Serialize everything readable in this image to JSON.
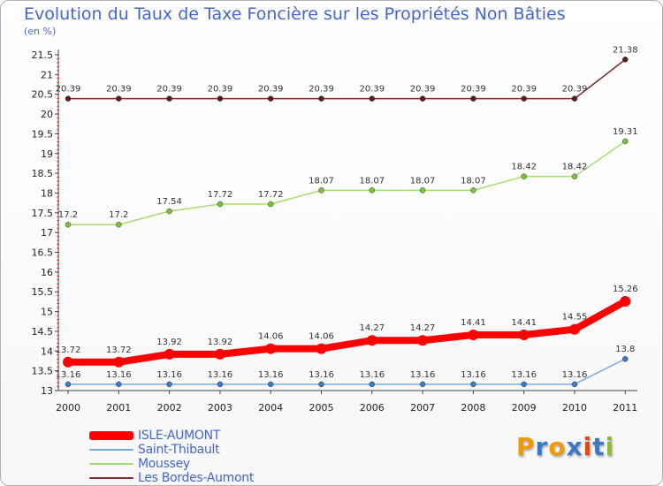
{
  "logo": {
    "text": "Proxiti",
    "letter_colors": [
      "#f29900",
      "#3a78c8",
      "#f29900",
      "#3a78c8",
      "#e04a1a",
      "#3a78c8",
      "#8cbf26"
    ]
  },
  "chart_data": {
    "type": "line",
    "title": "Evolution du Taux de Taxe Foncière sur les Propriétés Non Bâties",
    "ylabel": "(en %)",
    "xlabel": "",
    "ylim": [
      13,
      21.5
    ],
    "ytick_step": 0.5,
    "categories": [
      "2000",
      "2001",
      "2002",
      "2003",
      "2004",
      "2005",
      "2006",
      "2007",
      "2008",
      "2009",
      "2010",
      "2011"
    ],
    "series": [
      {
        "name": "Les Bordes-Aumont",
        "color": "#7a2e30",
        "marker": "#5a1a1e",
        "width": 1.5,
        "values": [
          20.39,
          20.39,
          20.39,
          20.39,
          20.39,
          20.39,
          20.39,
          20.39,
          20.39,
          20.39,
          20.39,
          21.38
        ],
        "labels": [
          "20.39",
          "20.39",
          "20.39",
          "20.39",
          "20.39",
          "20.39",
          "20.39",
          "20.39",
          "20.39",
          "20.39",
          "20.39",
          "21.38"
        ]
      },
      {
        "name": "Moussey",
        "color": "#a8dc70",
        "marker": "#7cc23a",
        "width": 1.5,
        "values": [
          17.2,
          17.2,
          17.54,
          17.72,
          17.72,
          18.07,
          18.07,
          18.07,
          18.07,
          18.42,
          18.42,
          19.31
        ],
        "labels": [
          "17.2",
          "17.2",
          "17.54",
          "17.72",
          "17.72",
          "18.07",
          "18.07",
          "18.07",
          "18.07",
          "18.42",
          "18.42",
          "19.31"
        ]
      },
      {
        "name": "ISLE-AUMONT",
        "color": "#ff0000",
        "marker": "#ff0000",
        "width": 8,
        "values": [
          13.72,
          13.72,
          13.92,
          13.92,
          14.06,
          14.06,
          14.27,
          14.27,
          14.41,
          14.41,
          14.55,
          15.26
        ],
        "labels": [
          "13.72",
          "13.72",
          "13.92",
          "13.92",
          "14.06",
          "14.06",
          "14.27",
          "14.27",
          "14.41",
          "14.41",
          "14.55",
          "15.26"
        ]
      },
      {
        "name": "Saint-Thibault",
        "color": "#7aaad8",
        "marker": "#3a7cc8",
        "width": 1.5,
        "values": [
          13.16,
          13.16,
          13.16,
          13.16,
          13.16,
          13.16,
          13.16,
          13.16,
          13.16,
          13.16,
          13.16,
          13.8
        ],
        "labels": [
          "13.16",
          "13.16",
          "13.16",
          "13.16",
          "13.16",
          "13.16",
          "13.16",
          "13.16",
          "13.16",
          "13.16",
          "13.16",
          "13.8"
        ]
      }
    ],
    "legend": {
      "placement": "bottom-left",
      "order": [
        "ISLE-AUMONT",
        "Saint-Thibault",
        "Moussey",
        "Les Bordes-Aumont"
      ]
    }
  }
}
